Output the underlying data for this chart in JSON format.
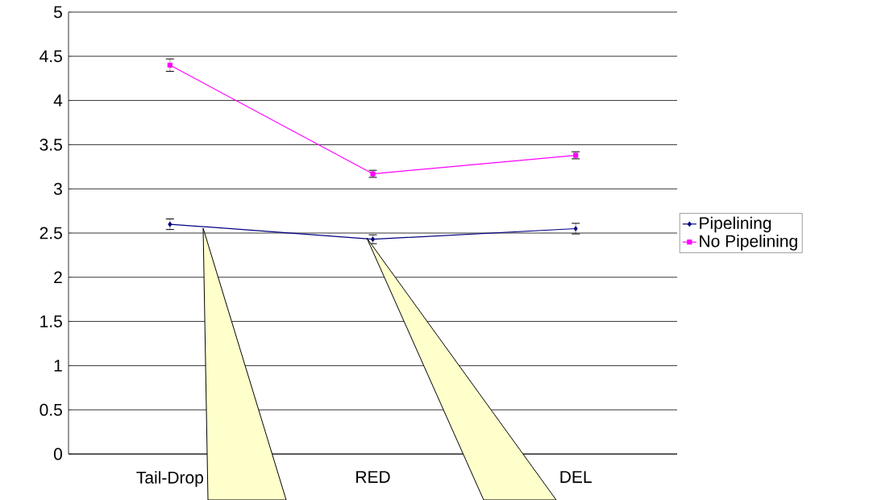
{
  "chart_data": {
    "type": "line",
    "categories": [
      "Tail-Drop",
      "RED",
      "DEL"
    ],
    "series": [
      {
        "name": "Pipelining",
        "color": "#000080",
        "marker": "diamond",
        "values": [
          2.6,
          2.43,
          2.55
        ],
        "errors": [
          0.06,
          0.05,
          0.06
        ]
      },
      {
        "name": "No Pipelining",
        "color": "#ff00ff",
        "marker": "square",
        "values": [
          4.4,
          3.17,
          3.38
        ],
        "errors": [
          0.07,
          0.04,
          0.04
        ]
      }
    ],
    "ylim": [
      0,
      5
    ],
    "yticks": [
      0,
      0.5,
      1,
      1.5,
      2,
      2.5,
      3,
      3.5,
      4,
      4.5,
      5
    ],
    "grid": "y",
    "legend": "right",
    "line_style": "solid"
  }
}
